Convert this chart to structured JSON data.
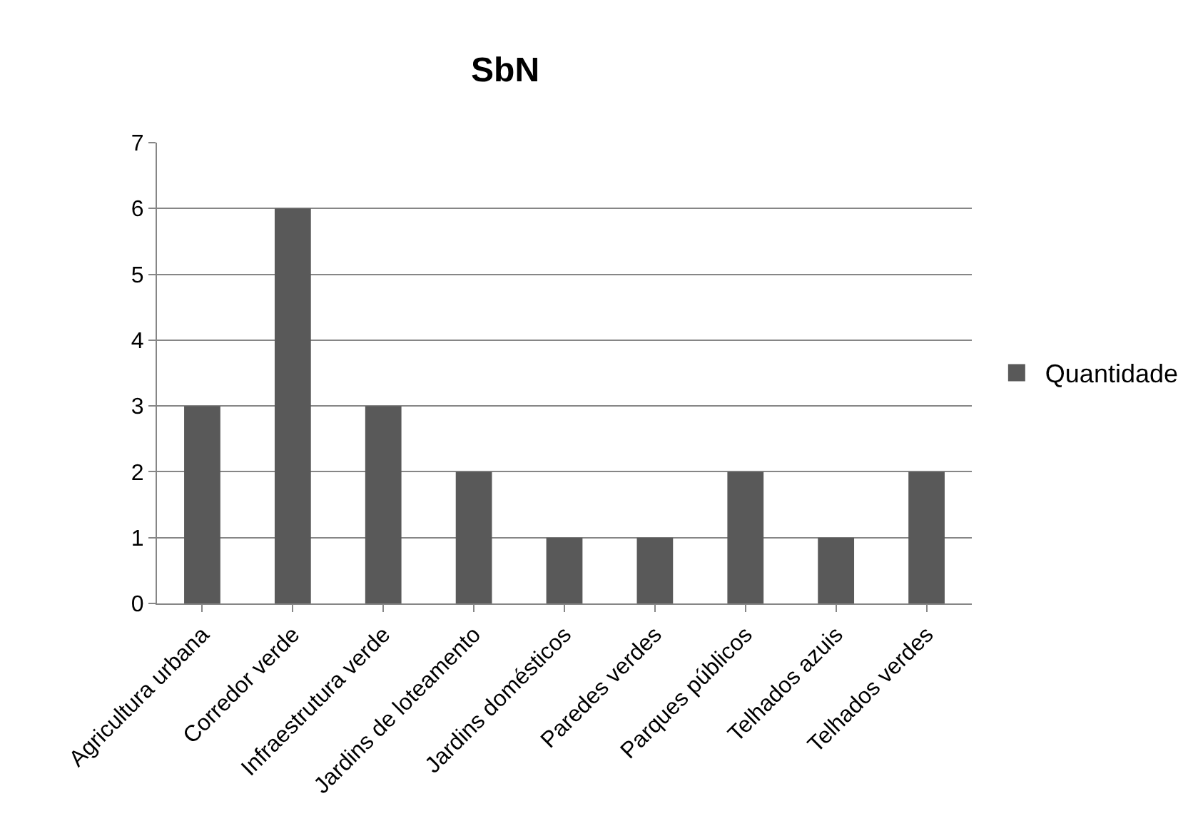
{
  "chart_data": {
    "type": "bar",
    "title": "SbN",
    "categories": [
      "Agricultura urbana",
      "Corredor verde",
      "Infraestrutura verde",
      "Jardins de loteamento",
      "Jardins domésticos",
      "Paredes verdes",
      "Parques públicos",
      "Telhados azuis",
      "Telhados verdes"
    ],
    "series": [
      {
        "name": "Quantidade",
        "color": "#595959",
        "values": [
          3,
          6,
          3,
          2,
          1,
          1,
          2,
          1,
          2
        ]
      }
    ],
    "ylim": [
      0,
      7
    ],
    "yticks": [
      0,
      1,
      2,
      3,
      4,
      5,
      6,
      7
    ],
    "grid": "y",
    "legend": "right"
  }
}
